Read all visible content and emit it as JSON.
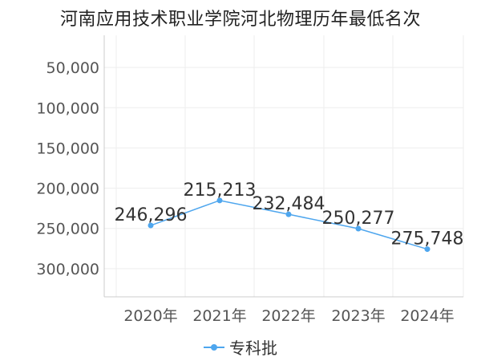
{
  "chart_data": {
    "type": "line",
    "title": "河南应用技术职业学院河北物理历年最低名次",
    "categories": [
      "2020年",
      "2021年",
      "2022年",
      "2023年",
      "2024年"
    ],
    "series": [
      {
        "name": "专科批",
        "values": [
          246296,
          215213,
          232484,
          250277,
          275748
        ],
        "labels": [
          "246,296",
          "215,213",
          "232,484",
          "250,277",
          "275,748"
        ],
        "color": "#4ea6ee"
      }
    ],
    "yticks": [
      {
        "value": 50000,
        "label": "50,000"
      },
      {
        "value": 100000,
        "label": "100,000"
      },
      {
        "value": 150000,
        "label": "150,000"
      },
      {
        "value": 200000,
        "label": "200,000"
      },
      {
        "value": 250000,
        "label": "250,000"
      },
      {
        "value": 300000,
        "label": "300,000"
      }
    ],
    "ylim": [
      10000,
      335000
    ],
    "y_reversed": true,
    "grid": true,
    "legend": "bottom-center",
    "xlabel": "",
    "ylabel": ""
  }
}
